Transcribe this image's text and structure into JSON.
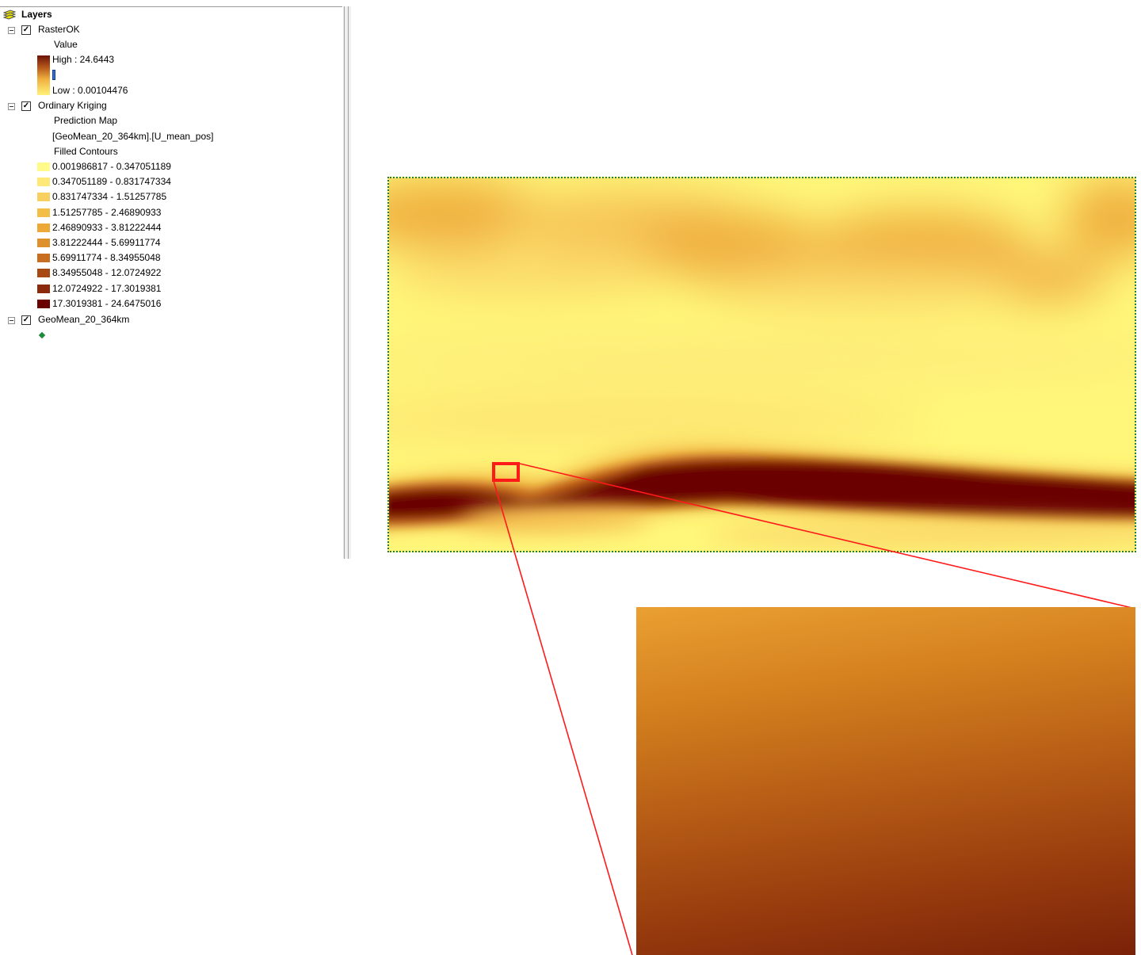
{
  "toc": {
    "root_label": "Layers",
    "layers": [
      {
        "name": "RasterOK",
        "checked": true,
        "field_label": "Value",
        "high_label": "High : 24.6443",
        "low_label": "Low : 0.00104476"
      },
      {
        "name": "Ordinary Kriging",
        "checked": true,
        "sub_label": "Prediction Map",
        "field_label": "[GeoMean_20_364km].[U_mean_pos]",
        "contour_label": "Filled Contours",
        "classes": [
          {
            "label": "0.001986817 - 0.347051189",
            "color": "#fffa8a"
          },
          {
            "label": "0.347051189 - 0.831747334",
            "color": "#fde878"
          },
          {
            "label": "0.831747334 - 1.51257785",
            "color": "#f8d060"
          },
          {
            "label": "1.51257785 - 2.46890933",
            "color": "#f3be48"
          },
          {
            "label": "2.46890933 - 3.81222444",
            "color": "#eda838"
          },
          {
            "label": "3.81222444 - 5.69911774",
            "color": "#de902c"
          },
          {
            "label": "5.69911774 - 8.34955048",
            "color": "#c86e20"
          },
          {
            "label": "8.34955048 - 12.0724922",
            "color": "#a84812"
          },
          {
            "label": "12.0724922 - 17.3019381",
            "color": "#8a2a0a"
          },
          {
            "label": "17.3019381 - 24.6475016",
            "color": "#6a0000"
          }
        ]
      },
      {
        "name": "GeoMean_20_364km",
        "checked": true,
        "symbol_color": "#1e8a3c"
      }
    ]
  },
  "colors": {
    "zoom_box": "#ff1a1a",
    "frame_border": "#2a7a3a"
  }
}
